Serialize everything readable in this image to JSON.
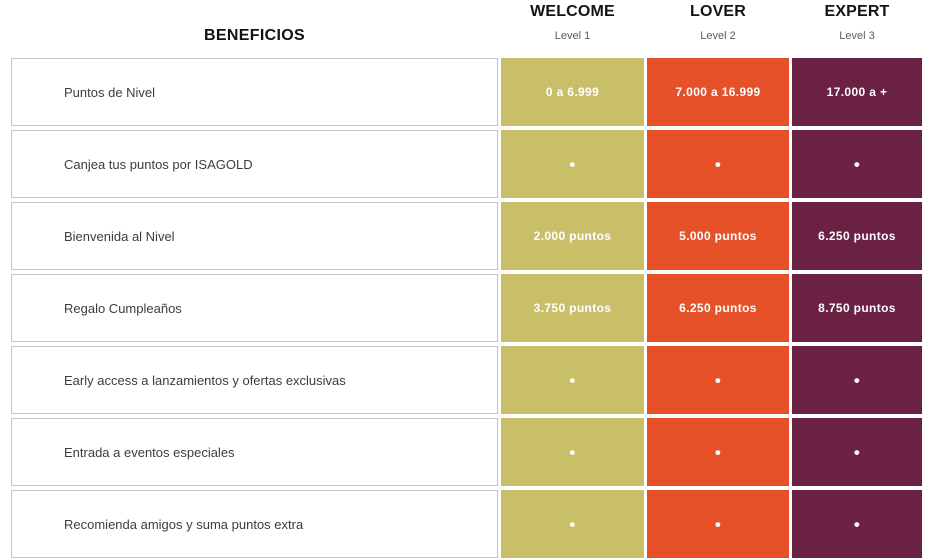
{
  "header": {
    "benefits_title": "BENEFICIOS",
    "columns": [
      {
        "name": "WELCOME",
        "level": "Level 1"
      },
      {
        "name": "LOVER",
        "level": "Level 2"
      },
      {
        "name": "EXPERT",
        "level": "Level 3"
      }
    ]
  },
  "colors": {
    "welcome": "#c9bf68",
    "lover": "#e6512a",
    "expert": "#6b2143",
    "benefit_border": "#c5c5c5",
    "benefit_text": "#3d3d3d",
    "value_text": "#ffffff"
  },
  "rows": [
    {
      "benefit": "Puntos de Nivel",
      "welcome": "0 a 6.999",
      "lover": "7.000 a 16.999",
      "expert": "17.000 a +"
    },
    {
      "benefit": "Canjea tus puntos por ISAGOLD",
      "welcome": "•",
      "lover": "•",
      "expert": "•"
    },
    {
      "benefit": "Bienvenida al Nivel",
      "welcome": "2.000 puntos",
      "lover": "5.000 puntos",
      "expert": "6.250 puntos"
    },
    {
      "benefit": "Regalo Cumpleaños",
      "welcome": "3.750 puntos",
      "lover": "6.250 puntos",
      "expert": "8.750 puntos"
    },
    {
      "benefit": "Early access a lanzamientos y ofertas exclusivas",
      "welcome": "•",
      "lover": "•",
      "expert": "•"
    },
    {
      "benefit": "Entrada a eventos especiales",
      "welcome": "•",
      "lover": "•",
      "expert": "•"
    },
    {
      "benefit": "Recomienda amigos y suma puntos extra",
      "welcome": "•",
      "lover": "•",
      "expert": "•"
    }
  ]
}
